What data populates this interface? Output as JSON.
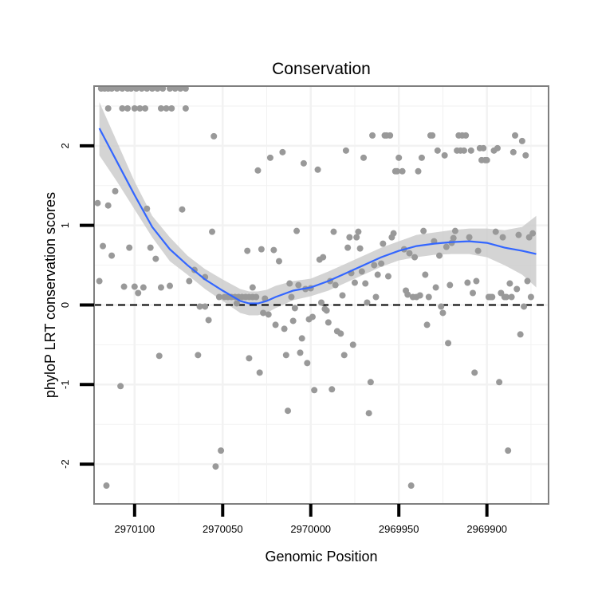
{
  "chart_data": {
    "type": "scatter",
    "title": "Conservation",
    "xlabel": "Genomic Position",
    "ylabel": "phyloP LRT conservation scores",
    "xlim": [
      2970123,
      2969865
    ],
    "ylim": [
      -2.5,
      2.75
    ],
    "x_reversed": true,
    "x_ticks": [
      2970100,
      2970050,
      2970000,
      2969950,
      2969900
    ],
    "x_tick_labels": [
      "2970100",
      "2970050",
      "2970000",
      "2969950",
      "2969900"
    ],
    "y_ticks": [
      -2,
      -1,
      0,
      1,
      2
    ],
    "y_tick_labels": [
      "-2",
      "-1",
      "0",
      "1",
      "2"
    ],
    "reference_line": {
      "y": 0,
      "style": "dashed"
    },
    "colors": {
      "points": "#999999",
      "smooth": "#3366ff",
      "ribbon": "#cccccc",
      "panel_border": "#7f7f7f",
      "grid": "#f2f2f2"
    },
    "series": [
      {
        "name": "scores",
        "points": [
          [
            2970119,
            2.72
          ],
          [
            2970117,
            2.72
          ],
          [
            2970115,
            2.72
          ],
          [
            2970113,
            2.72
          ],
          [
            2970110,
            2.72
          ],
          [
            2970107,
            2.72
          ],
          [
            2970104,
            2.72
          ],
          [
            2970102,
            2.72
          ],
          [
            2970099,
            2.72
          ],
          [
            2970096,
            2.72
          ],
          [
            2970093,
            2.72
          ],
          [
            2970090,
            2.72
          ],
          [
            2970087,
            2.72
          ],
          [
            2970084,
            2.72
          ],
          [
            2970080,
            2.72
          ],
          [
            2970077,
            2.72
          ],
          [
            2970074,
            2.72
          ],
          [
            2970071,
            2.72
          ],
          [
            2970115,
            2.47
          ],
          [
            2970107,
            2.47
          ],
          [
            2970104,
            2.47
          ],
          [
            2970100,
            2.47
          ],
          [
            2970097,
            2.47
          ],
          [
            2970094,
            2.47
          ],
          [
            2970085,
            2.47
          ],
          [
            2970082,
            2.47
          ],
          [
            2970079,
            2.47
          ],
          [
            2970071,
            2.47
          ],
          [
            2970121,
            1.28
          ],
          [
            2970120,
            0.3
          ],
          [
            2970118,
            0.74
          ],
          [
            2970116,
            -2.27
          ],
          [
            2970115,
            1.25
          ],
          [
            2970113,
            0.62
          ],
          [
            2970111,
            1.43
          ],
          [
            2970108,
            -1.02
          ],
          [
            2970106,
            0.23
          ],
          [
            2970103,
            0.72
          ],
          [
            2970100,
            0.23
          ],
          [
            2970098,
            0.15
          ],
          [
            2970095,
            0.22
          ],
          [
            2970093,
            1.21
          ],
          [
            2970091,
            0.72
          ],
          [
            2970088,
            0.58
          ],
          [
            2970086,
            -0.64
          ],
          [
            2970085,
            0.22
          ],
          [
            2970080,
            0.24
          ],
          [
            2970073,
            1.2
          ],
          [
            2970069,
            0.3
          ],
          [
            2970066,
            0.44
          ],
          [
            2970064,
            -0.63
          ],
          [
            2970063,
            -0.02
          ],
          [
            2970060,
            0.35
          ],
          [
            2970058,
            -0.19
          ],
          [
            2970056,
            0.92
          ],
          [
            2970055,
            2.12
          ],
          [
            2970054,
            -2.03
          ],
          [
            2970051,
            -1.83
          ],
          [
            2970052,
            0.1
          ],
          [
            2970049,
            0.1
          ],
          [
            2970047,
            0.1
          ],
          [
            2970045,
            0.1
          ],
          [
            2970043,
            0.1
          ],
          [
            2970041,
            0.1
          ],
          [
            2970039,
            0.1
          ],
          [
            2970037,
            0.1
          ],
          [
            2970035,
            0.1
          ],
          [
            2970033,
            0.1
          ],
          [
            2970031,
            0.1
          ],
          [
            2970060,
            -0.02
          ],
          [
            2970042,
            0.02
          ],
          [
            2970036,
            0.68
          ],
          [
            2970035,
            -0.67
          ],
          [
            2970033,
            0.22
          ],
          [
            2970030,
            1.69
          ],
          [
            2970029,
            -0.85
          ],
          [
            2970028,
            0.7
          ],
          [
            2970027,
            -0.1
          ],
          [
            2970026,
            0.08
          ],
          [
            2970024,
            -0.12
          ],
          [
            2970023,
            1.85
          ],
          [
            2970021,
            0.69
          ],
          [
            2970020,
            -0.25
          ],
          [
            2970018,
            0.55
          ],
          [
            2970016,
            1.92
          ],
          [
            2970015,
            -0.3
          ],
          [
            2970014,
            -0.63
          ],
          [
            2970013,
            -1.33
          ],
          [
            2970012,
            0.27
          ],
          [
            2970011,
            0.1
          ],
          [
            2970010,
            -0.2
          ],
          [
            2970009,
            -0.04
          ],
          [
            2970008,
            0.93
          ],
          [
            2970007,
            0.25
          ],
          [
            2970006,
            -0.6
          ],
          [
            2970005,
            -0.42
          ],
          [
            2970004,
            1.78
          ],
          [
            2970003,
            0.2
          ],
          [
            2970002,
            -0.73
          ],
          [
            2970001,
            -0.18
          ],
          [
            2970000,
            0.21
          ],
          [
            2969999,
            -0.15
          ],
          [
            2969998,
            -1.07
          ],
          [
            2969996,
            1.7
          ],
          [
            2969995,
            0.57
          ],
          [
            2969994,
            0.03
          ],
          [
            2969993,
            0.6
          ],
          [
            2969992,
            -0.05
          ],
          [
            2969991,
            -0.07
          ],
          [
            2969990,
            -0.22
          ],
          [
            2969989,
            0.3
          ],
          [
            2969988,
            -1.06
          ],
          [
            2969987,
            0.92
          ],
          [
            2969986,
            0.25
          ],
          [
            2969985,
            -0.33
          ],
          [
            2969983,
            -0.36
          ],
          [
            2969982,
            0.12
          ],
          [
            2969981,
            -0.63
          ],
          [
            2969980,
            1.94
          ],
          [
            2969979,
            0.72
          ],
          [
            2969978,
            0.85
          ],
          [
            2969977,
            0.4
          ],
          [
            2969976,
            -0.5
          ],
          [
            2969975,
            0.28
          ],
          [
            2969974,
            0.85
          ],
          [
            2969973,
            0.92
          ],
          [
            2969972,
            0.71
          ],
          [
            2969971,
            0.42
          ],
          [
            2969970,
            1.85
          ],
          [
            2969969,
            0.27
          ],
          [
            2969968,
            0.03
          ],
          [
            2969967,
            -1.36
          ],
          [
            2969966,
            -0.97
          ],
          [
            2969965,
            2.13
          ],
          [
            2969964,
            0.5
          ],
          [
            2969963,
            0.1
          ],
          [
            2969962,
            0.38
          ],
          [
            2969960,
            0.52
          ],
          [
            2969959,
            0.77
          ],
          [
            2969958,
            2.13
          ],
          [
            2969957,
            2.13
          ],
          [
            2969956,
            0.36
          ],
          [
            2969955,
            2.13
          ],
          [
            2969954,
            0.85
          ],
          [
            2969953,
            0.9
          ],
          [
            2969952,
            1.68
          ],
          [
            2969951,
            1.68
          ],
          [
            2969950,
            1.85
          ],
          [
            2969948,
            1.68
          ],
          [
            2969947,
            0.7
          ],
          [
            2969946,
            0.18
          ],
          [
            2969945,
            0.13
          ],
          [
            2969944,
            0.65
          ],
          [
            2969943,
            -2.27
          ],
          [
            2969942,
            0.1
          ],
          [
            2969941,
            0.6
          ],
          [
            2969940,
            0.1
          ],
          [
            2969939,
            1.68
          ],
          [
            2969938,
            0.12
          ],
          [
            2969937,
            1.85
          ],
          [
            2969936,
            0.93
          ],
          [
            2969935,
            0.38
          ],
          [
            2969934,
            -0.25
          ],
          [
            2969933,
            0.1
          ],
          [
            2969932,
            2.13
          ],
          [
            2969931,
            2.13
          ],
          [
            2969930,
            0.8
          ],
          [
            2969929,
            0.22
          ],
          [
            2969928,
            1.94
          ],
          [
            2969927,
            0.62
          ],
          [
            2969926,
            -0.02
          ],
          [
            2969925,
            -0.1
          ],
          [
            2969924,
            1.88
          ],
          [
            2969923,
            0.73
          ],
          [
            2969922,
            -0.48
          ],
          [
            2969921,
            0.25
          ],
          [
            2969920,
            0.78
          ],
          [
            2969919,
            0.84
          ],
          [
            2969918,
            0.93
          ],
          [
            2969917,
            1.94
          ],
          [
            2969916,
            2.13
          ],
          [
            2969915,
            1.94
          ],
          [
            2969914,
            2.13
          ],
          [
            2969913,
            1.94
          ],
          [
            2969912,
            2.13
          ],
          [
            2969911,
            0.28
          ],
          [
            2969910,
            0.85
          ],
          [
            2969909,
            1.94
          ],
          [
            2969908,
            0.15
          ],
          [
            2969907,
            -0.85
          ],
          [
            2969906,
            0.3
          ],
          [
            2969905,
            0.68
          ],
          [
            2969904,
            1.97
          ],
          [
            2969903,
            1.82
          ],
          [
            2969902,
            1.97
          ],
          [
            2969901,
            1.82
          ],
          [
            2969900,
            1.82
          ],
          [
            2969899,
            0.1
          ],
          [
            2969898,
            0.1
          ],
          [
            2969897,
            0.1
          ],
          [
            2969896,
            1.94
          ],
          [
            2969895,
            0.92
          ],
          [
            2969894,
            1.97
          ],
          [
            2969893,
            -0.97
          ],
          [
            2969892,
            0.15
          ],
          [
            2969891,
            0.85
          ],
          [
            2969890,
            0.1
          ],
          [
            2969889,
            0.1
          ],
          [
            2969888,
            -1.83
          ],
          [
            2969887,
            0.27
          ],
          [
            2969886,
            0.1
          ],
          [
            2969885,
            1.92
          ],
          [
            2969884,
            2.13
          ],
          [
            2969883,
            0.2
          ],
          [
            2969882,
            0.88
          ],
          [
            2969881,
            -0.37
          ],
          [
            2969880,
            2.06
          ],
          [
            2969879,
            -0.02
          ],
          [
            2969878,
            1.88
          ],
          [
            2969877,
            0.3
          ],
          [
            2969876,
            0.85
          ],
          [
            2969875,
            0.1
          ],
          [
            2969874,
            0.9
          ]
        ]
      }
    ],
    "smooth_curve": [
      [
        2970120,
        2.22
      ],
      [
        2970110,
        1.8
      ],
      [
        2970100,
        1.38
      ],
      [
        2970090,
        0.98
      ],
      [
        2970080,
        0.7
      ],
      [
        2970070,
        0.5
      ],
      [
        2970060,
        0.32
      ],
      [
        2970050,
        0.18
      ],
      [
        2970040,
        0.05
      ],
      [
        2970035,
        0.02
      ],
      [
        2970030,
        0.02
      ],
      [
        2970025,
        0.05
      ],
      [
        2970020,
        0.1
      ],
      [
        2970010,
        0.18
      ],
      [
        2970000,
        0.22
      ],
      [
        2969990,
        0.3
      ],
      [
        2969980,
        0.4
      ],
      [
        2969970,
        0.5
      ],
      [
        2969960,
        0.6
      ],
      [
        2969950,
        0.68
      ],
      [
        2969940,
        0.74
      ],
      [
        2969930,
        0.77
      ],
      [
        2969920,
        0.79
      ],
      [
        2969910,
        0.8
      ],
      [
        2969900,
        0.78
      ],
      [
        2969890,
        0.72
      ],
      [
        2969880,
        0.68
      ],
      [
        2969872,
        0.64
      ]
    ],
    "smooth_band": {
      "upper": [
        [
          2970120,
          2.55
        ],
        [
          2970110,
          2.05
        ],
        [
          2970100,
          1.55
        ],
        [
          2970090,
          1.12
        ],
        [
          2970080,
          0.85
        ],
        [
          2970070,
          0.62
        ],
        [
          2970060,
          0.45
        ],
        [
          2970050,
          0.32
        ],
        [
          2970040,
          0.2
        ],
        [
          2970035,
          0.17
        ],
        [
          2970030,
          0.17
        ],
        [
          2970025,
          0.19
        ],
        [
          2970020,
          0.24
        ],
        [
          2970010,
          0.3
        ],
        [
          2970000,
          0.33
        ],
        [
          2969990,
          0.42
        ],
        [
          2969980,
          0.52
        ],
        [
          2969970,
          0.62
        ],
        [
          2969960,
          0.72
        ],
        [
          2969950,
          0.8
        ],
        [
          2969940,
          0.88
        ],
        [
          2969930,
          0.91
        ],
        [
          2969920,
          0.94
        ],
        [
          2969910,
          0.96
        ],
        [
          2969900,
          0.96
        ],
        [
          2969890,
          0.94
        ],
        [
          2969880,
          0.98
        ],
        [
          2969872,
          1.12
        ]
      ],
      "lower": [
        [
          2970120,
          1.88
        ],
        [
          2970110,
          1.55
        ],
        [
          2970100,
          1.2
        ],
        [
          2970090,
          0.85
        ],
        [
          2970080,
          0.55
        ],
        [
          2970070,
          0.38
        ],
        [
          2970060,
          0.2
        ],
        [
          2970050,
          0.05
        ],
        [
          2970040,
          -0.1
        ],
        [
          2970035,
          -0.13
        ],
        [
          2970030,
          -0.13
        ],
        [
          2970025,
          -0.1
        ],
        [
          2970020,
          -0.04
        ],
        [
          2970010,
          0.06
        ],
        [
          2970000,
          0.11
        ],
        [
          2969990,
          0.18
        ],
        [
          2969980,
          0.28
        ],
        [
          2969970,
          0.38
        ],
        [
          2969960,
          0.48
        ],
        [
          2969950,
          0.56
        ],
        [
          2969940,
          0.6
        ],
        [
          2969930,
          0.63
        ],
        [
          2969920,
          0.64
        ],
        [
          2969910,
          0.64
        ],
        [
          2969900,
          0.6
        ],
        [
          2969890,
          0.5
        ],
        [
          2969880,
          0.38
        ],
        [
          2969872,
          0.22
        ]
      ]
    }
  }
}
